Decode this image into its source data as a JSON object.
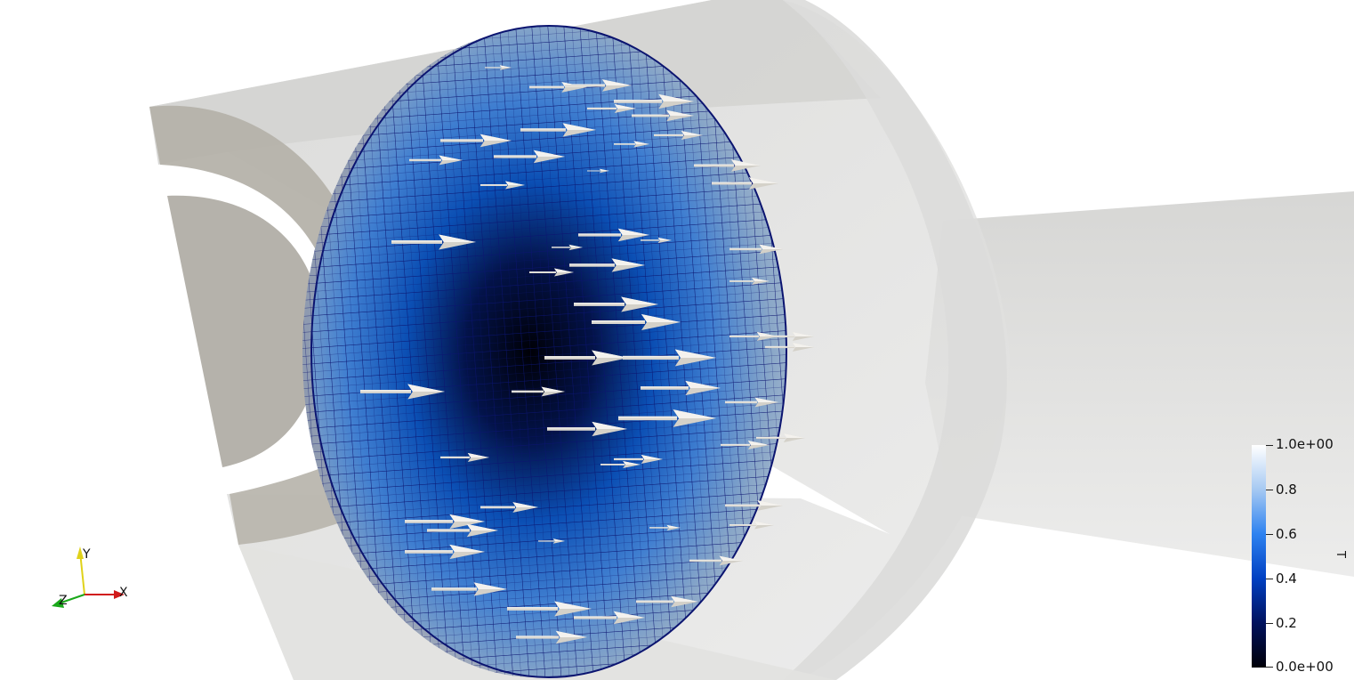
{
  "scene": {
    "colors": {
      "background": "#ffffff",
      "mesh_lines": "#0b1470",
      "arrows": "#e0ddd6",
      "housing": "#c9c9c6"
    }
  },
  "colorbar": {
    "title": "T",
    "ticks": [
      "1.0e+00",
      "0.8",
      "0.6",
      "0.4",
      "0.2",
      "0.0e+00"
    ],
    "range": [
      0,
      1
    ],
    "colors": [
      "#000008",
      "#00125e",
      "#0040c2",
      "#2d82f0",
      "#a6c9f2",
      "#ffffff"
    ]
  },
  "orientation_axes": {
    "x": "X",
    "y": "Y",
    "z": "Z",
    "colors": {
      "x": "#d11a1a",
      "y": "#e0d21a",
      "z": "#1aa81a"
    }
  }
}
